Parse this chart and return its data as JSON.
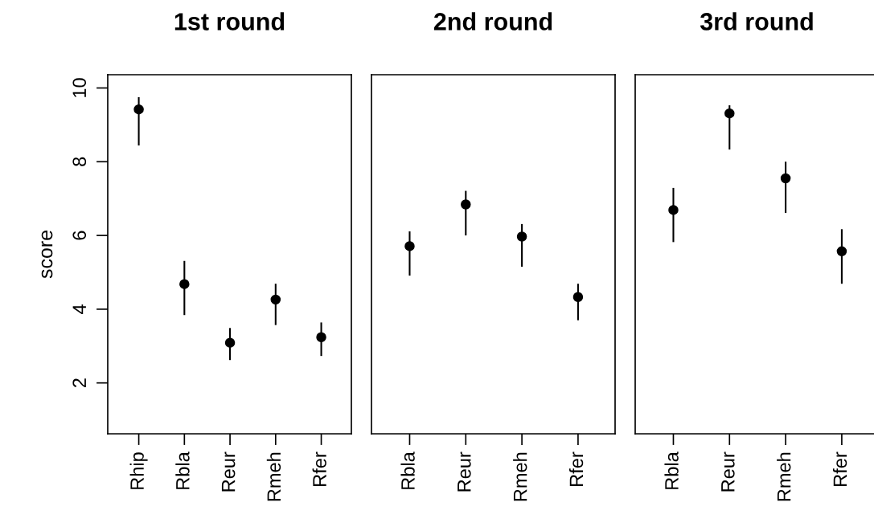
{
  "chart_data": [
    {
      "type": "scatter",
      "title": "1st round",
      "ylabel": "score",
      "categories": [
        "Rhip",
        "Rbla",
        "Reur",
        "Rmeh",
        "Rfer"
      ],
      "values": [
        9.42,
        4.68,
        3.09,
        4.26,
        3.24
      ],
      "errors": [
        [
          8.44,
          9.75
        ],
        [
          3.84,
          5.31
        ],
        [
          2.62,
          3.49
        ],
        [
          3.57,
          4.69
        ],
        [
          2.73,
          3.64
        ]
      ],
      "color": "#000000",
      "marker": "circle",
      "ylim": [
        0.62,
        10.36
      ],
      "yticks": [
        2,
        4,
        6,
        8,
        10
      ]
    },
    {
      "type": "scatter",
      "title": "2nd round",
      "categories": [
        "Rbla",
        "Reur",
        "Rmeh",
        "Rfer"
      ],
      "values": [
        5.71,
        6.84,
        5.97,
        4.33
      ],
      "errors": [
        [
          4.91,
          6.11
        ],
        [
          6.0,
          7.21
        ],
        [
          5.15,
          6.31
        ],
        [
          3.7,
          4.69
        ]
      ],
      "color": "#000000",
      "marker": "circle",
      "ylim": [
        0.62,
        10.36
      ],
      "tick_labels": "x"
    },
    {
      "type": "scatter",
      "title": "3rd round",
      "categories": [
        "Rbla",
        "Reur",
        "Rmeh",
        "Rfer"
      ],
      "values": [
        6.69,
        9.31,
        7.55,
        5.57
      ],
      "errors": [
        [
          5.82,
          7.29
        ],
        [
          8.33,
          9.53
        ],
        [
          6.61,
          8.0
        ],
        [
          4.69,
          6.17
        ]
      ],
      "color": "#000000",
      "marker": "circle",
      "ylim": [
        0.62,
        10.36
      ],
      "tick_labels": "x"
    }
  ]
}
